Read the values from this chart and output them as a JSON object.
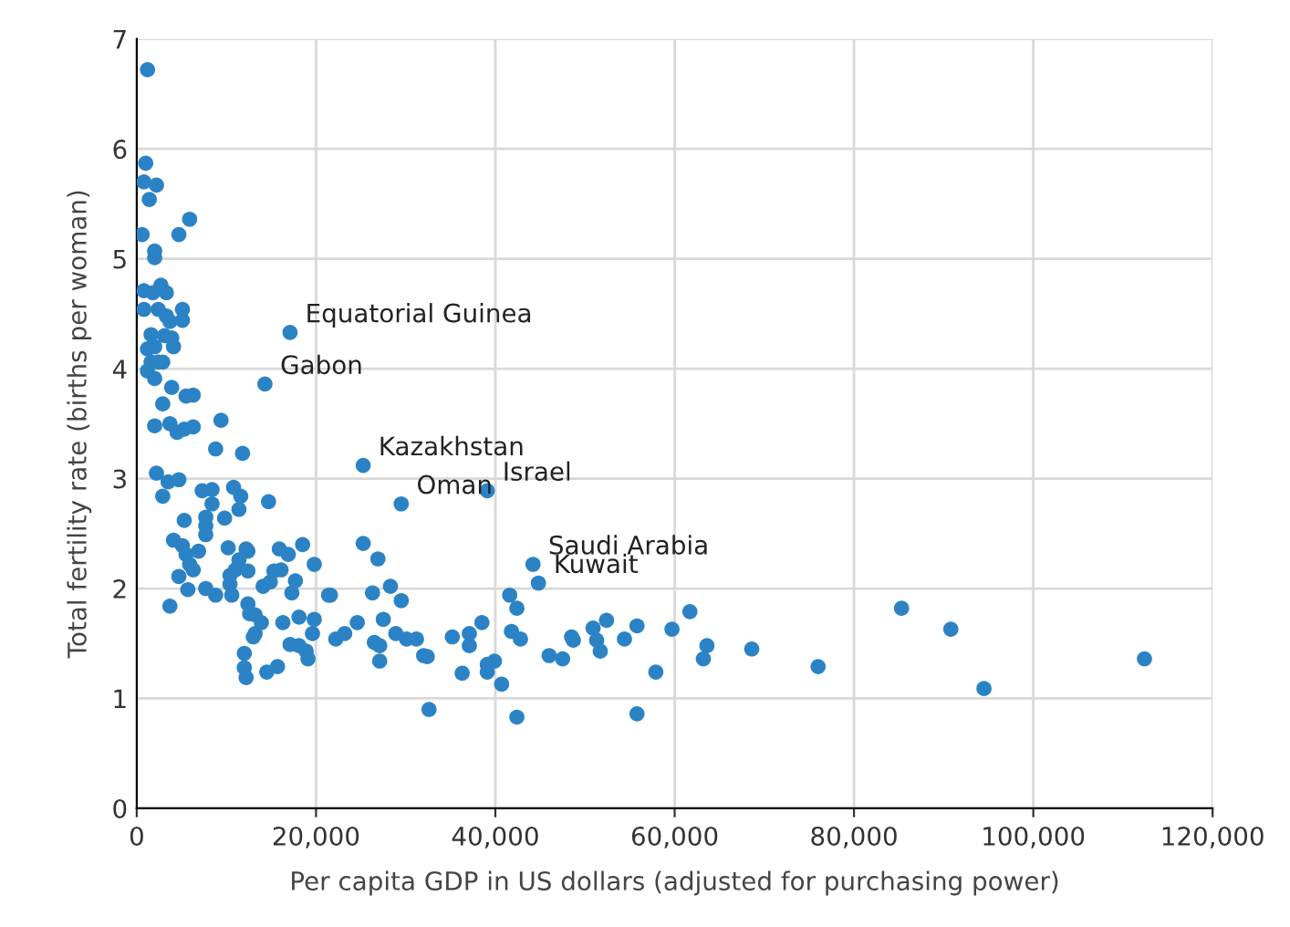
{
  "chart_data": {
    "type": "scatter",
    "xlabel": "Per capita GDP in US dollars (adjusted for purchasing power)",
    "ylabel": "Total fertility rate (births per woman)",
    "xlim": [
      0,
      120000
    ],
    "ylim": [
      0,
      7
    ],
    "xticks": [
      0,
      {
        "value": 20000,
        "label": "20,000"
      },
      {
        "value": 40000,
        "label": "40,000"
      },
      {
        "value": 60000,
        "label": "60,000"
      },
      {
        "value": 80000,
        "label": "80,000"
      },
      {
        "value": 100000,
        "label": "100,000"
      },
      {
        "value": 120000,
        "label": "120,000"
      }
    ],
    "yticks": [
      0,
      1,
      2,
      3,
      4,
      5,
      6,
      7
    ],
    "grid": true,
    "marker": "circle",
    "series": [
      {
        "color": "#2b83c6",
        "x": [
          1200,
          1000,
          800,
          2200,
          1400,
          5900,
          4700,
          600,
          2000,
          2000,
          800,
          2700,
          3300,
          1800,
          800,
          2400,
          3300,
          3700,
          5100,
          5100,
          1600,
          3100,
          3900,
          4100,
          1200,
          2000,
          1600,
          2400,
          2900,
          1200,
          2000,
          17100,
          14300,
          3900,
          2900,
          5500,
          6300,
          9400,
          2000,
          3700,
          4500,
          5300,
          6300,
          8800,
          11800,
          2200,
          3500,
          4700,
          2900,
          7300,
          8400,
          10800,
          11600,
          8400,
          14700,
          11400,
          5300,
          7700,
          7700,
          7700,
          9800,
          4100,
          5100,
          5500,
          5900,
          6300,
          6900,
          4700,
          5700,
          3700,
          7700,
          8800,
          10200,
          12200,
          12400,
          11400,
          11000,
          10400,
          10400,
          10600,
          12400,
          15900,
          16900,
          18500,
          19800,
          15300,
          16100,
          14100,
          14900,
          17700,
          17300,
          21400,
          12400,
          12600,
          13200,
          13900,
          13200,
          13000,
          16300,
          18100,
          19800,
          19600,
          17100,
          18100,
          18900,
          19100,
          12000,
          12000,
          12200,
          14500,
          15700,
          25260,
          29500,
          39100,
          44200,
          44800,
          25260,
          26900,
          21600,
          26300,
          28300,
          29500,
          22200,
          23200,
          24600,
          26500,
          27100,
          27100,
          27500,
          28900,
          30100,
          31200,
          32000,
          32400,
          32600,
          35200,
          37100,
          37100,
          38500,
          36300,
          39100,
          39100,
          39900,
          40700,
          41600,
          42400,
          41800,
          42800,
          42400,
          46000,
          47500,
          48500,
          48700,
          50900,
          51300,
          51700,
          52400,
          54400,
          55800,
          55800,
          57900,
          59700,
          61700,
          63600,
          63200,
          68600,
          76000,
          85300,
          90800,
          94500,
          112400
        ],
        "values": [
          6.72,
          5.87,
          5.7,
          5.67,
          5.54,
          5.36,
          5.22,
          5.22,
          5.07,
          5.01,
          4.71,
          4.76,
          4.69,
          4.69,
          4.54,
          4.54,
          4.48,
          4.43,
          4.54,
          4.44,
          4.31,
          4.3,
          4.28,
          4.2,
          4.18,
          4.2,
          4.06,
          4.06,
          4.06,
          3.98,
          3.91,
          4.33,
          3.86,
          3.83,
          3.68,
          3.75,
          3.76,
          3.53,
          3.48,
          3.5,
          3.42,
          3.45,
          3.47,
          3.27,
          3.23,
          3.05,
          2.97,
          2.99,
          2.84,
          2.89,
          2.9,
          2.92,
          2.84,
          2.77,
          2.79,
          2.72,
          2.62,
          2.65,
          2.57,
          2.49,
          2.64,
          2.44,
          2.39,
          2.31,
          2.22,
          2.17,
          2.34,
          2.11,
          1.99,
          1.84,
          2.0,
          1.94,
          2.37,
          2.36,
          2.34,
          2.26,
          2.17,
          2.12,
          2.04,
          1.94,
          2.16,
          2.36,
          2.31,
          2.4,
          2.22,
          2.16,
          2.17,
          2.02,
          2.06,
          2.07,
          1.96,
          1.94,
          1.86,
          1.77,
          1.76,
          1.69,
          1.59,
          1.56,
          1.69,
          1.74,
          1.72,
          1.59,
          1.49,
          1.48,
          1.43,
          1.36,
          1.41,
          1.28,
          1.19,
          1.24,
          1.29,
          3.12,
          2.77,
          2.89,
          2.22,
          2.05,
          2.41,
          2.27,
          1.94,
          1.96,
          2.02,
          1.89,
          1.54,
          1.59,
          1.69,
          1.51,
          1.48,
          1.34,
          1.72,
          1.59,
          1.54,
          1.54,
          1.39,
          1.38,
          0.9,
          1.56,
          1.59,
          1.48,
          1.69,
          1.23,
          1.31,
          1.24,
          1.34,
          1.13,
          1.94,
          1.82,
          1.61,
          1.54,
          0.83,
          1.39,
          1.36,
          1.56,
          1.53,
          1.64,
          1.53,
          1.43,
          1.71,
          1.54,
          1.66,
          0.86,
          1.24,
          1.63,
          1.79,
          1.48,
          1.36,
          1.45,
          1.29,
          1.82,
          1.63,
          1.09,
          1.36
        ]
      }
    ],
    "annotations": [
      {
        "text": "Equatorial Guinea",
        "x": 17100,
        "y": 4.33
      },
      {
        "text": "Gabon",
        "x": 14300,
        "y": 3.86
      },
      {
        "text": "Kazakhstan",
        "x": 25260,
        "y": 3.12
      },
      {
        "text": "Oman",
        "x": 29500,
        "y": 2.77
      },
      {
        "text": "Israel",
        "x": 39100,
        "y": 2.89
      },
      {
        "text": "Saudi Arabia",
        "x": 44200,
        "y": 2.22
      },
      {
        "text": "Kuwait",
        "x": 44800,
        "y": 2.05
      }
    ]
  }
}
